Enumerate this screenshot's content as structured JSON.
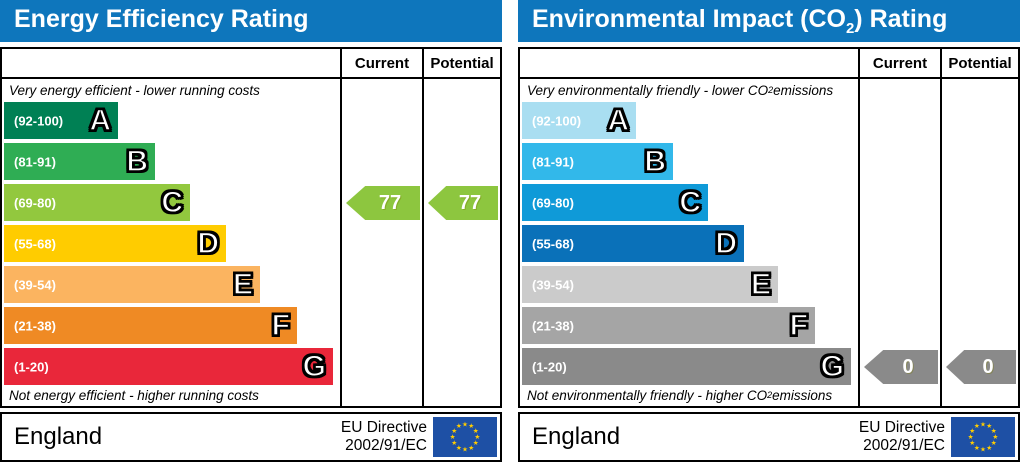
{
  "colors": {
    "header_blue": "#0e76bc",
    "flag_bg": "#1e50a5",
    "flag_stars": "#ffcc00"
  },
  "panels": {
    "left": {
      "title_pre": "Energy Efficiency Rating",
      "title_sub": "",
      "title_post": "",
      "columns": {
        "current": "Current",
        "potential": "Potential"
      },
      "top_label_pre": "Very energy efficient - lower running costs",
      "top_label_sub": "",
      "top_label_post": "",
      "bottom_label_pre": "Not energy efficient - higher running costs",
      "bottom_label_sub": "",
      "bottom_label_post": "",
      "bands": [
        {
          "letter": "A",
          "range": "(92-100)",
          "color": "#008054"
        },
        {
          "letter": "B",
          "range": "(81-91)",
          "color": "#2fad54"
        },
        {
          "letter": "C",
          "range": "(69-80)",
          "color": "#92c83e"
        },
        {
          "letter": "D",
          "range": "(55-68)",
          "color": "#ffcc00"
        },
        {
          "letter": "E",
          "range": "(39-54)",
          "color": "#fbb460"
        },
        {
          "letter": "F",
          "range": "(21-38)",
          "color": "#ef8a24"
        },
        {
          "letter": "G",
          "range": "(1-20)",
          "color": "#e9273a"
        }
      ],
      "current": {
        "value": "77",
        "band": "C",
        "arrow_color": "#8dc63f"
      },
      "potential": {
        "value": "77",
        "band": "C",
        "arrow_color": "#8dc63f"
      },
      "footer": {
        "region": "England",
        "directive_line1": "EU Directive",
        "directive_line2": "2002/91/EC"
      }
    },
    "right": {
      "title_pre": "Environmental Impact (CO",
      "title_sub": "2",
      "title_post": ") Rating",
      "columns": {
        "current": "Current",
        "potential": "Potential"
      },
      "top_label_pre": "Very environmentally friendly - lower CO",
      "top_label_sub": "2",
      "top_label_post": " emissions",
      "bottom_label_pre": "Not environmentally friendly - higher CO",
      "bottom_label_sub": "2",
      "bottom_label_post": " emissions",
      "bands": [
        {
          "letter": "A",
          "range": "(92-100)",
          "color": "#a9def1"
        },
        {
          "letter": "B",
          "range": "(81-91)",
          "color": "#32b8ea"
        },
        {
          "letter": "C",
          "range": "(69-80)",
          "color": "#0f9ad8"
        },
        {
          "letter": "D",
          "range": "(55-68)",
          "color": "#0a71b9"
        },
        {
          "letter": "E",
          "range": "(39-54)",
          "color": "#cbcbcb"
        },
        {
          "letter": "F",
          "range": "(21-38)",
          "color": "#a5a5a5"
        },
        {
          "letter": "G",
          "range": "(1-20)",
          "color": "#8a8a8a"
        }
      ],
      "current": {
        "value": "0",
        "band": "G",
        "arrow_color": "#8a8a8a"
      },
      "potential": {
        "value": "0",
        "band": "G",
        "arrow_color": "#8a8a8a"
      },
      "footer": {
        "region": "England",
        "directive_line1": "EU Directive",
        "directive_line2": "2002/91/EC"
      }
    }
  },
  "chart_data": [
    {
      "type": "bar",
      "title": "Energy Efficiency Rating",
      "categories": [
        "A (92-100)",
        "B (81-91)",
        "C (69-80)",
        "D (55-68)",
        "E (39-54)",
        "F (21-38)",
        "G (1-20)"
      ],
      "band_colors": [
        "#008054",
        "#2fad54",
        "#92c83e",
        "#ffcc00",
        "#fbb460",
        "#ef8a24",
        "#e9273a"
      ],
      "scale": [
        1,
        100
      ],
      "series": [
        {
          "name": "Current",
          "value": 77,
          "band": "C"
        },
        {
          "name": "Potential",
          "value": 77,
          "band": "C"
        }
      ],
      "top_annotation": "Very energy efficient - lower running costs",
      "bottom_annotation": "Not energy efficient - higher running costs",
      "footer": "England | EU Directive 2002/91/EC"
    },
    {
      "type": "bar",
      "title": "Environmental Impact (CO2) Rating",
      "categories": [
        "A (92-100)",
        "B (81-91)",
        "C (69-80)",
        "D (55-68)",
        "E (39-54)",
        "F (21-38)",
        "G (1-20)"
      ],
      "band_colors": [
        "#a9def1",
        "#32b8ea",
        "#0f9ad8",
        "#0a71b9",
        "#cbcbcb",
        "#a5a5a5",
        "#8a8a8a"
      ],
      "scale": [
        1,
        100
      ],
      "series": [
        {
          "name": "Current",
          "value": 0,
          "band": "G"
        },
        {
          "name": "Potential",
          "value": 0,
          "band": "G"
        }
      ],
      "top_annotation": "Very environmentally friendly - lower CO2 emissions",
      "bottom_annotation": "Not environmentally friendly - higher CO2 emissions",
      "footer": "England | EU Directive 2002/91/EC"
    }
  ]
}
